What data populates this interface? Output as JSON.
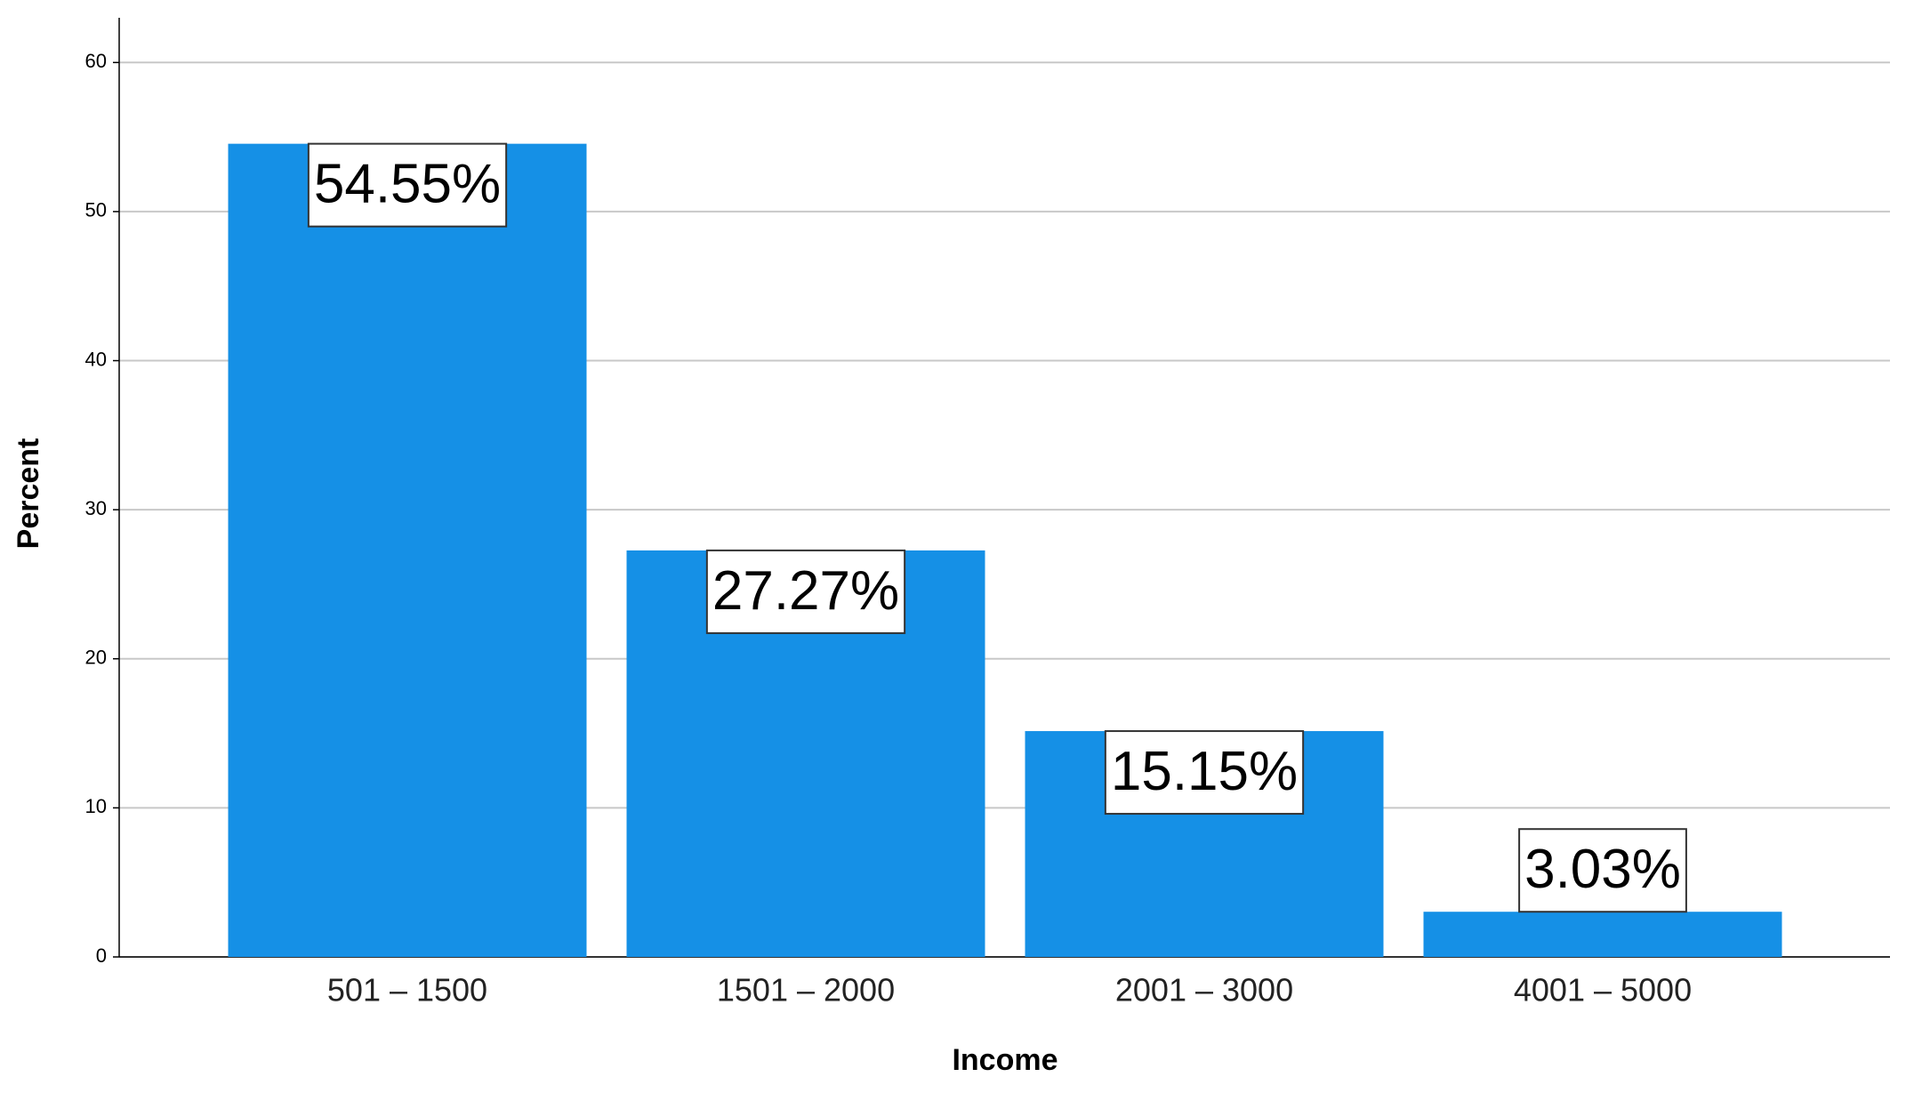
{
  "chart_data": {
    "type": "bar",
    "x_label": "Income",
    "y_label": "Percent",
    "categories": [
      "501 – 1500",
      "1501 – 2000",
      "2001 – 3000",
      "4001 – 5000"
    ],
    "values": [
      54.55,
      27.27,
      15.15,
      3.03
    ],
    "value_labels": [
      "54.55%",
      "27.27%",
      "15.15%",
      "3.03%"
    ],
    "color": "#1590e6",
    "ylim": [
      0,
      63
    ],
    "yticks": [
      0,
      10,
      20,
      30,
      40,
      50,
      60
    ],
    "grid": true
  }
}
